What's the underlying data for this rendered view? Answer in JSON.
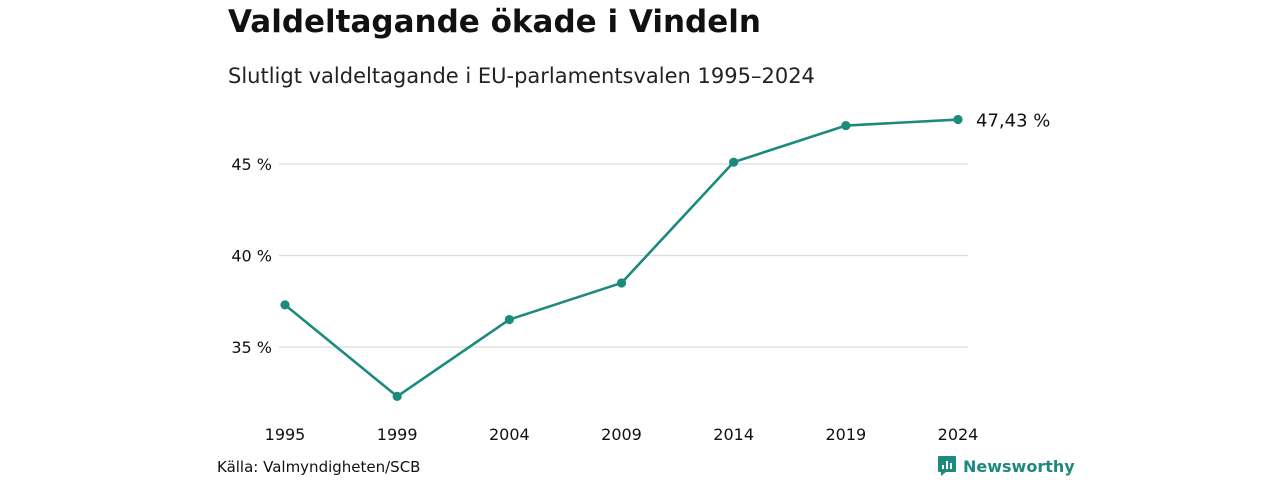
{
  "header": {
    "title": "Valdeltagande ökade i Vindeln",
    "subtitle": "Slutligt valdeltagande i EU-parlamentsvalen 1995–2024"
  },
  "footer": {
    "source": "Källa: Valmyndigheten/SCB",
    "brand": "Newsworthy",
    "brand_icon": "newsworthy-logo-icon"
  },
  "colors": {
    "line": "#1c8a7c",
    "grid": "#dcdcdc",
    "text": "#111111"
  },
  "chart_data": {
    "type": "line",
    "title": "Valdeltagande ökade i Vindeln",
    "subtitle": "Slutligt valdeltagande i EU-parlamentsvalen 1995–2024",
    "x": [
      1995,
      1999,
      2004,
      2009,
      2014,
      2019,
      2024
    ],
    "x_tick_labels": [
      "1995",
      "1999",
      "2004",
      "2009",
      "2014",
      "2019",
      "2024"
    ],
    "series": [
      {
        "values": [
          37.3,
          32.3,
          36.5,
          38.5,
          45.1,
          47.1,
          47.43
        ]
      }
    ],
    "y_ticks": [
      35,
      40,
      45
    ],
    "y_tick_labels": [
      "35 %",
      "40 %",
      "45 %"
    ],
    "ylim": [
      31.5,
      48
    ],
    "end_label": "47,43 %",
    "grid": true,
    "legend": "none"
  }
}
